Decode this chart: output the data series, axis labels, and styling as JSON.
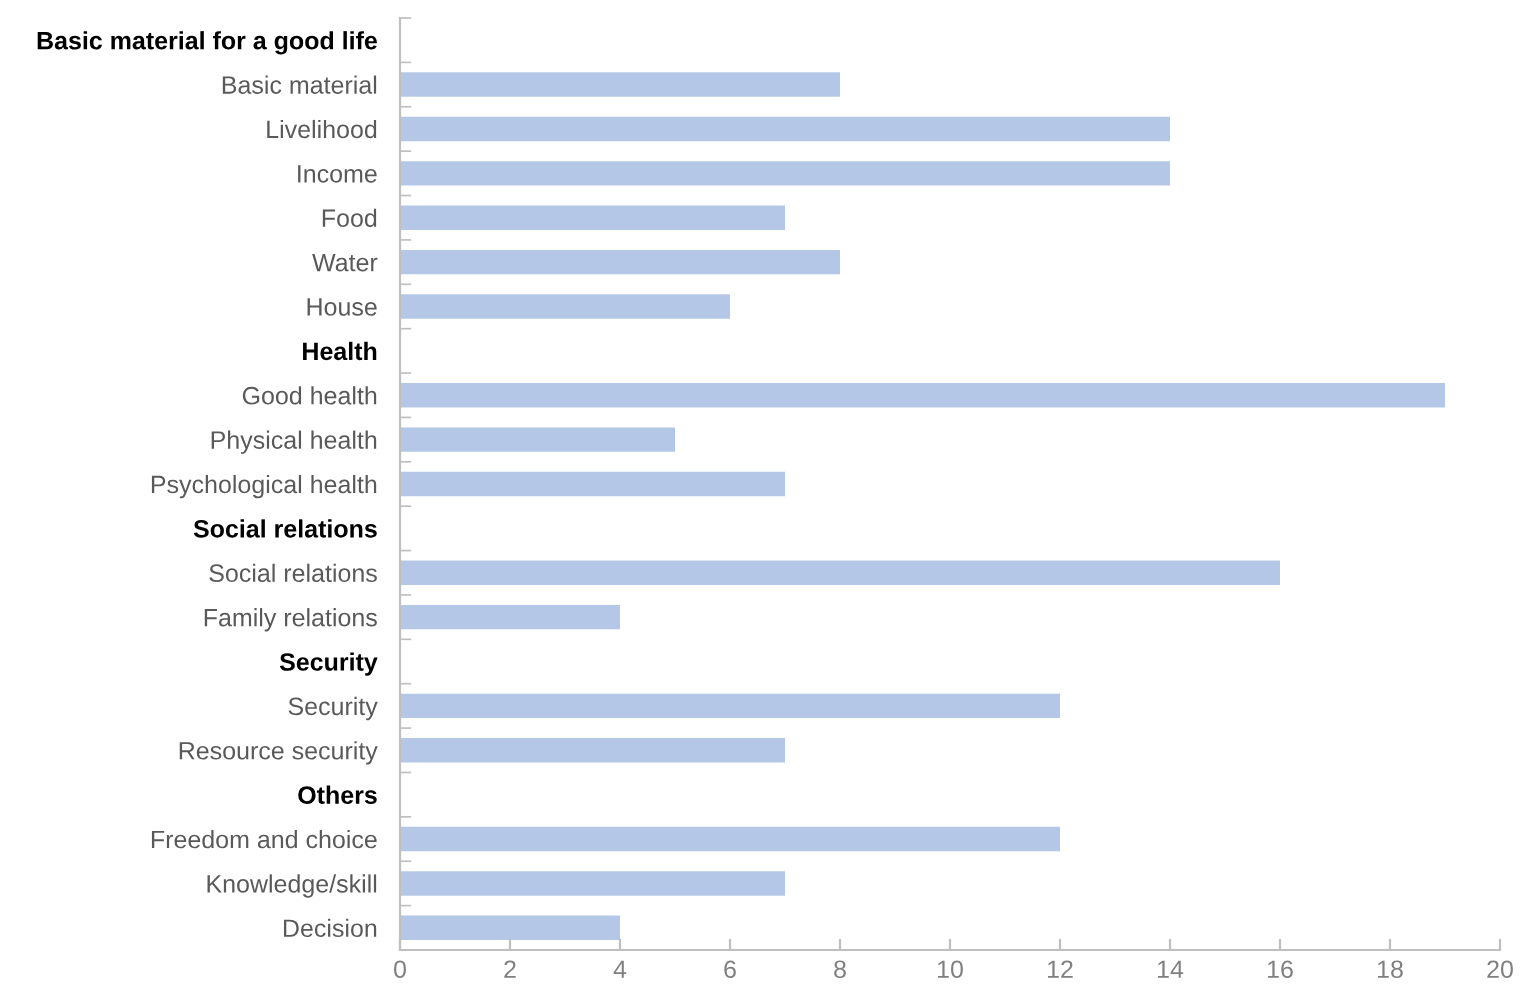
{
  "chart_data": {
    "type": "bar",
    "orientation": "horizontal",
    "categories": [
      "Basic material for a good life",
      "Basic material",
      "Livelihood",
      "Income",
      "Food",
      "Water",
      "House",
      "Health",
      "Good health",
      "Physical health",
      "Psychological health",
      "Social relations",
      "Social relations",
      "Family relations",
      "Security",
      "Security",
      "Resource security",
      "Others",
      "Freedom and choice",
      "Knowledge/skill",
      "Decision"
    ],
    "values": [
      null,
      8,
      14,
      14,
      7,
      8,
      6,
      null,
      19,
      5,
      7,
      null,
      16,
      4,
      null,
      12,
      7,
      null,
      12,
      7,
      4
    ],
    "color": "#b4c7e7",
    "xlim": [
      0,
      20
    ],
    "xticks": [
      0,
      2,
      4,
      6,
      8,
      10,
      12,
      14,
      16,
      18,
      20
    ],
    "grid": false,
    "legend": false
  }
}
